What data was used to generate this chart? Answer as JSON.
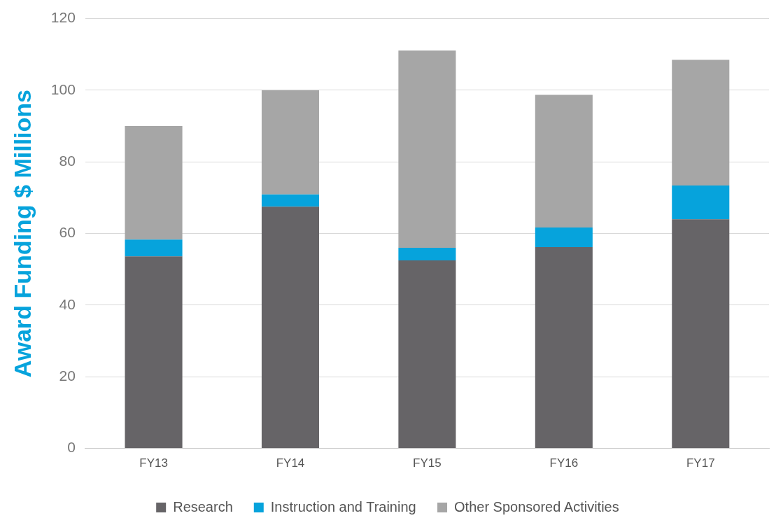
{
  "chart_data": {
    "type": "bar",
    "stacked": true,
    "ylabel": "Award Funding $ Millions",
    "categories": [
      "FY13",
      "FY14",
      "FY15",
      "FY16",
      "FY17"
    ],
    "series": [
      {
        "name": "Research",
        "color": "#666467",
        "values": [
          53.6,
          67.5,
          52.5,
          56.2,
          64.0
        ]
      },
      {
        "name": "Instruction and Training",
        "color": "#06a3dc",
        "values": [
          4.7,
          3.4,
          3.5,
          5.5,
          9.4
        ]
      },
      {
        "name": "Other Sponsored Activities",
        "color": "#a6a6a6",
        "values": [
          31.7,
          29.1,
          55.1,
          37.0,
          35.1
        ]
      }
    ],
    "ylim": [
      0,
      120
    ],
    "yticks": [
      0,
      20,
      40,
      60,
      80,
      100,
      120
    ],
    "grid": "y",
    "legend": "bottom"
  }
}
